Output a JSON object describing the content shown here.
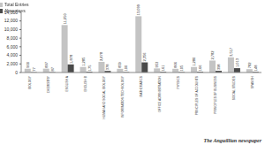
{
  "chart_data": {
    "type": "bar",
    "categories": [
      "BIOLOGY",
      "CHEMISTRY",
      "ENGLISH A",
      "ENGLISH B",
      "HUMAN AND SOCIAL BIOLOGY",
      "INFORMATION TECHNOLOGY",
      "MATHEMATICS",
      "OFFICE ADMINISTRATION",
      "PHYSICS",
      "PRINCIPLES OF ACCOUNTS",
      "PRINCIPLES OF BUSINESS",
      "SOCIAL STUDIES",
      "SPANISH"
    ],
    "series": [
      {
        "name": "Total Entries",
        "color": "#c4c4c4",
        "values": [
          900,
          897,
          11050,
          1285,
          2478,
          859,
          13099,
          953,
          866,
          1280,
          2782,
          3517,
          782
        ],
        "value_labels": [
          "900",
          "897",
          "11,050",
          "1,285",
          "2,478",
          "859",
          "13,099",
          "953",
          "866",
          "1,280",
          "2,782",
          "3,517",
          "782"
        ]
      },
      {
        "name": "Absentees",
        "color": "#4a4a4a",
        "values": [
          77,
          87,
          1878,
          175,
          378,
          100,
          2356,
          161,
          105,
          166,
          398,
          1013,
          148
        ],
        "value_labels": [
          "77",
          "87",
          "1,878",
          "175",
          "378",
          "100",
          "2,356",
          "161",
          "105",
          "166",
          "398",
          "1,013",
          "148"
        ]
      }
    ],
    "ylim": [
      0,
      14000
    ],
    "yticks": [
      0,
      {
        "value": 2000,
        "label": "2,000"
      },
      {
        "value": 4000,
        "label": "4,000"
      },
      {
        "value": 6000,
        "label": "6,000"
      },
      {
        "value": 8000,
        "label": "8,000"
      },
      {
        "value": 10000,
        "label": "10,000"
      },
      {
        "value": 12000,
        "label": "12,000"
      },
      {
        "value": 14000,
        "label": "14,000"
      }
    ],
    "grid": false,
    "legend": "top-right",
    "data_labels": true,
    "annotations": [
      "The Anguillian newspaper"
    ]
  }
}
